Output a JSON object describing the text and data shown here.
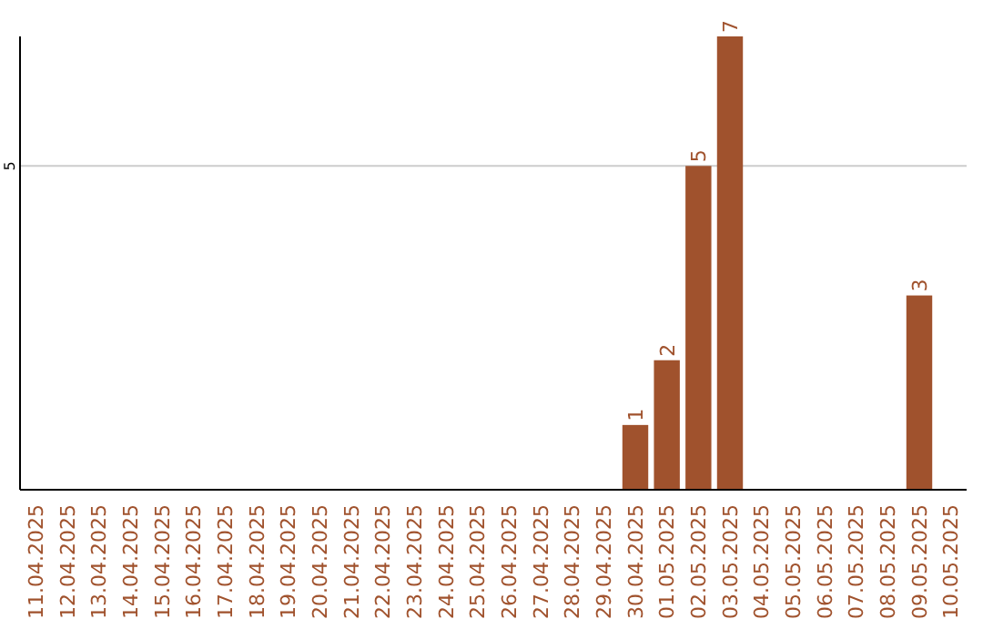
{
  "chart_data": {
    "type": "bar",
    "categories": [
      "11.04.2025",
      "12.04.2025",
      "13.04.2025",
      "14.04.2025",
      "15.04.2025",
      "16.04.2025",
      "17.04.2025",
      "18.04.2025",
      "19.04.2025",
      "20.04.2025",
      "21.04.2025",
      "22.04.2025",
      "23.04.2025",
      "24.04.2025",
      "25.04.2025",
      "26.04.2025",
      "27.04.2025",
      "28.04.2025",
      "29.04.2025",
      "30.04.2025",
      "01.05.2025",
      "02.05.2025",
      "03.05.2025",
      "04.05.2025",
      "05.05.2025",
      "06.05.2025",
      "07.05.2025",
      "08.05.2025",
      "09.05.2025",
      "10.05.2025"
    ],
    "values": [
      null,
      null,
      null,
      null,
      null,
      null,
      null,
      null,
      null,
      null,
      null,
      null,
      null,
      null,
      null,
      null,
      null,
      null,
      null,
      1,
      2,
      5,
      7,
      null,
      null,
      null,
      null,
      null,
      3,
      null
    ],
    "data_labels": true,
    "color": "#a0522d",
    "ylim": [
      0,
      7
    ],
    "yticks": [
      5
    ],
    "grid": "y"
  }
}
